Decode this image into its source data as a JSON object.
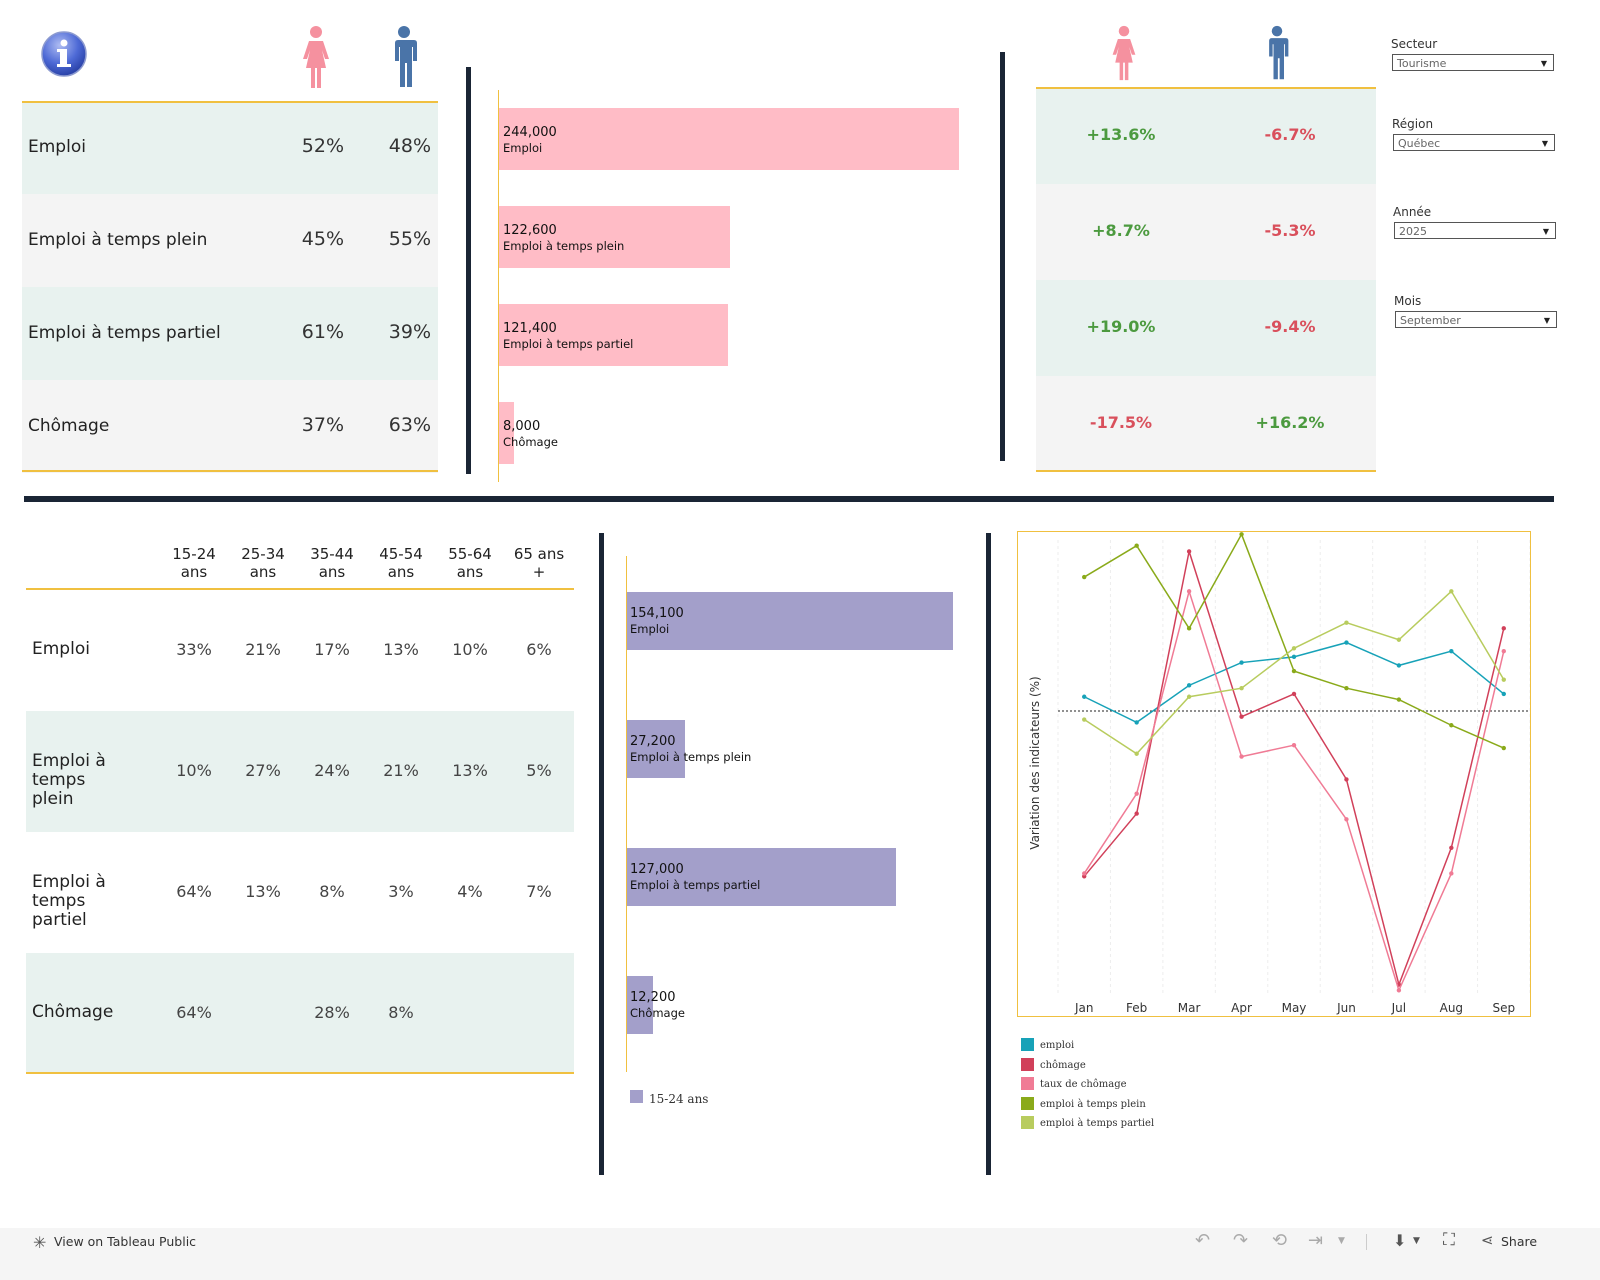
{
  "colors": {
    "female": "#f5919f",
    "male": "#4a74a8",
    "gender_bar": "#ffbcc6",
    "age_bar": "#a39fca",
    "positive": "#4c9a3f",
    "negative": "#d9505c",
    "row_alt": "#e8f2ef",
    "row_base": "#f4f4f4",
    "gold_line": "#f0c040",
    "divider": "#1a2535"
  },
  "header": {
    "info_icon": "info-icon",
    "female_icon": "female-person-icon",
    "male_icon": "male-person-icon"
  },
  "gender_table": {
    "rows": [
      {
        "label": "Emploi",
        "female": "52%",
        "male": "48%"
      },
      {
        "label": "Emploi à temps plein",
        "female": "45%",
        "male": "55%"
      },
      {
        "label": "Emploi à temps partiel",
        "female": "61%",
        "male": "39%"
      },
      {
        "label": "Chômage",
        "female": "37%",
        "male": "63%"
      }
    ]
  },
  "gender_bars": {
    "chart_data": {
      "type": "bar",
      "orientation": "horizontal",
      "categories": [
        "Emploi",
        "Emploi à temps plein",
        "Emploi à temps partiel",
        "Chômage"
      ],
      "values": [
        244000,
        122600,
        121400,
        8000
      ],
      "labels": [
        "244,000",
        "122,600",
        "121,400",
        "8,000"
      ]
    }
  },
  "change_table": {
    "rows": [
      {
        "female": "+13.6%",
        "male": "-6.7%"
      },
      {
        "female": "+8.7%",
        "male": "-5.3%"
      },
      {
        "female": "+19.0%",
        "male": "-9.4%"
      },
      {
        "female": "-17.5%",
        "male": "+16.2%"
      }
    ]
  },
  "filters": [
    {
      "label": "Secteur",
      "value": "Tourisme"
    },
    {
      "label": "Région",
      "value": "Québec"
    },
    {
      "label": "Année",
      "value": "2025"
    },
    {
      "label": "Mois",
      "value": "September"
    }
  ],
  "age_table": {
    "headers": [
      {
        "line1": "15-24",
        "line2": "ans"
      },
      {
        "line1": "25-34",
        "line2": "ans"
      },
      {
        "line1": "35-44",
        "line2": "ans"
      },
      {
        "line1": "45-54",
        "line2": "ans"
      },
      {
        "line1": "55-64",
        "line2": "ans"
      },
      {
        "line1": "65 ans",
        "line2": "+"
      }
    ],
    "rows": [
      {
        "label1": "Emploi",
        "label2": "",
        "values": [
          "33%",
          "21%",
          "17%",
          "13%",
          "10%",
          "6%"
        ]
      },
      {
        "label1": "Emploi à temps",
        "label2": "plein",
        "values": [
          "10%",
          "27%",
          "24%",
          "21%",
          "13%",
          "5%"
        ]
      },
      {
        "label1": "Emploi à temps",
        "label2": "partiel",
        "values": [
          "64%",
          "13%",
          "8%",
          "3%",
          "4%",
          "7%"
        ]
      },
      {
        "label1": "Chômage",
        "label2": "",
        "values": [
          "64%",
          "",
          "28%",
          "8%",
          "",
          ""
        ]
      }
    ]
  },
  "age_bars": {
    "chart_data": {
      "type": "bar",
      "orientation": "horizontal",
      "categories": [
        "Emploi",
        "Emploi à temps plein",
        "Emploi à temps partiel",
        "Chômage"
      ],
      "values": [
        154100,
        27200,
        127000,
        12200
      ],
      "labels": [
        "154,100",
        "27,200",
        "127,000",
        "12,200"
      ]
    },
    "legend": "15-24 ans"
  },
  "line_chart": {
    "chart_data": {
      "type": "line",
      "x": [
        "Jan",
        "Feb",
        "Mar",
        "Apr",
        "May",
        "Jun",
        "Jul",
        "Aug",
        "Sep"
      ],
      "ylabel": "Variation des indicateurs (%)",
      "baseline": 0,
      "ylim": [
        -10,
        6
      ],
      "series": [
        {
          "name": "emploi",
          "color": "#17a2b8",
          "values": [
            0.5,
            -0.4,
            0.9,
            1.7,
            1.9,
            2.4,
            1.6,
            2.1,
            0.6
          ]
        },
        {
          "name": "chômage",
          "color": "#d1405a",
          "values": [
            -5.8,
            -3.6,
            5.6,
            -0.2,
            0.6,
            -2.4,
            -9.6,
            -4.8,
            2.9
          ]
        },
        {
          "name": "taux de chômage",
          "color": "#f07b95",
          "values": [
            -5.7,
            -2.9,
            4.2,
            -1.6,
            -1.2,
            -3.8,
            -9.8,
            -5.7,
            2.1
          ]
        },
        {
          "name": "emploi à temps plein",
          "color": "#8aaa1a",
          "values": [
            4.7,
            5.8,
            2.9,
            6.2,
            1.4,
            0.8,
            0.4,
            -0.5,
            -1.3
          ]
        },
        {
          "name": "emploi à temps partiel",
          "color": "#b8cc5e",
          "values": [
            -0.3,
            -1.5,
            0.5,
            0.8,
            2.2,
            3.1,
            2.5,
            4.2,
            1.1
          ]
        }
      ]
    }
  },
  "footer": {
    "view_link": "View on Tableau Public",
    "share": "Share"
  }
}
